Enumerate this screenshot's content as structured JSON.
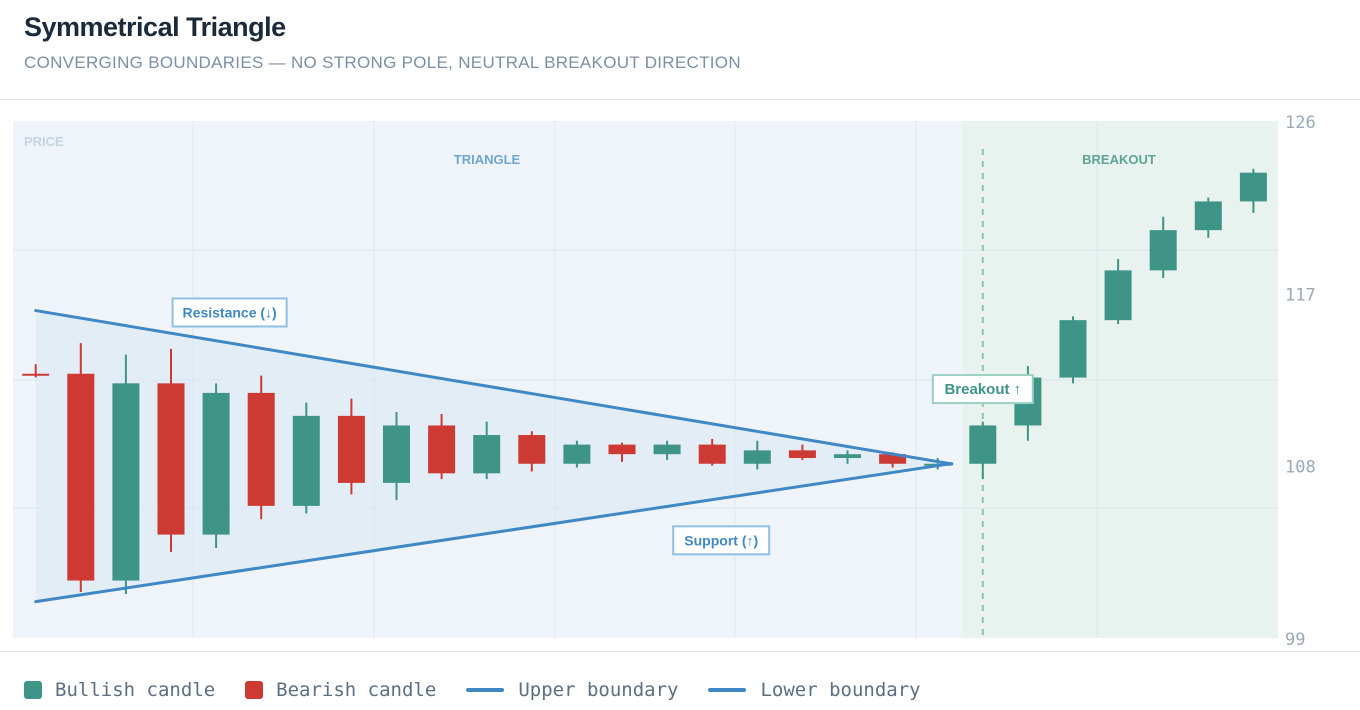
{
  "header": {
    "title": "Symmetrical Triangle",
    "subtitle": "CONVERGING BOUNDARIES — NO STRONG POLE, NEUTRAL BREAKOUT DIRECTION"
  },
  "legend": {
    "items": [
      {
        "label": "Bullish candle",
        "kind": "box",
        "color": "#3f9488"
      },
      {
        "label": "Bearish candle",
        "kind": "box",
        "color": "#cd3a34"
      },
      {
        "label": "Upper boundary",
        "kind": "line",
        "color": "#3f88c5"
      },
      {
        "label": "Lower boundary",
        "kind": "line",
        "color": "#3f88c5"
      }
    ]
  },
  "chart_data": {
    "type": "candlestick",
    "ylim": [
      99,
      126
    ],
    "y_ticks": [
      126,
      117,
      108,
      99
    ],
    "y_axis_side": "right",
    "panel_label": "PRICE",
    "colors": {
      "bullish": "#3f9488",
      "bearish": "#cd3a34",
      "boundary": "#3f88c5",
      "breakout_band": "#e8f2ee",
      "pattern_band": "#eef4f9"
    },
    "zones": [
      {
        "label": "TRIANGLE",
        "from_index": 0,
        "to_index": 20
      },
      {
        "label": "BREAKOUT",
        "from_index": 21,
        "to_index": 27
      }
    ],
    "candles": [
      {
        "o": 112.8,
        "h": 113.3,
        "l": 112.6,
        "c": 112.7
      },
      {
        "o": 112.8,
        "h": 114.4,
        "l": 101.4,
        "c": 102.0
      },
      {
        "o": 102.0,
        "h": 113.8,
        "l": 101.3,
        "c": 112.3
      },
      {
        "o": 112.3,
        "h": 114.1,
        "l": 103.5,
        "c": 104.4
      },
      {
        "o": 104.4,
        "h": 112.3,
        "l": 103.7,
        "c": 111.8
      },
      {
        "o": 111.8,
        "h": 112.7,
        "l": 105.2,
        "c": 105.9
      },
      {
        "o": 105.9,
        "h": 111.3,
        "l": 105.5,
        "c": 110.6
      },
      {
        "o": 110.6,
        "h": 111.5,
        "l": 106.5,
        "c": 107.1
      },
      {
        "o": 107.1,
        "h": 110.8,
        "l": 106.2,
        "c": 110.1
      },
      {
        "o": 110.1,
        "h": 110.7,
        "l": 107.3,
        "c": 107.6
      },
      {
        "o": 107.6,
        "h": 110.3,
        "l": 107.3,
        "c": 109.6
      },
      {
        "o": 109.6,
        "h": 109.8,
        "l": 107.7,
        "c": 108.1
      },
      {
        "o": 108.1,
        "h": 109.3,
        "l": 107.9,
        "c": 109.1
      },
      {
        "o": 109.1,
        "h": 109.2,
        "l": 108.2,
        "c": 108.6
      },
      {
        "o": 108.6,
        "h": 109.3,
        "l": 108.3,
        "c": 109.1
      },
      {
        "o": 109.1,
        "h": 109.4,
        "l": 108.0,
        "c": 108.1
      },
      {
        "o": 108.1,
        "h": 109.3,
        "l": 107.8,
        "c": 108.8
      },
      {
        "o": 108.8,
        "h": 109.1,
        "l": 108.3,
        "c": 108.4
      },
      {
        "o": 108.4,
        "h": 108.8,
        "l": 108.1,
        "c": 108.6
      },
      {
        "o": 108.6,
        "h": 108.7,
        "l": 107.9,
        "c": 108.1
      },
      {
        "o": 108.1,
        "h": 108.4,
        "l": 107.8,
        "c": 108.1
      },
      {
        "o": 108.1,
        "h": 110.3,
        "l": 107.3,
        "c": 110.1
      },
      {
        "o": 110.1,
        "h": 113.2,
        "l": 109.3,
        "c": 112.6
      },
      {
        "o": 112.6,
        "h": 115.8,
        "l": 112.3,
        "c": 115.6
      },
      {
        "o": 115.6,
        "h": 118.8,
        "l": 115.4,
        "c": 118.2
      },
      {
        "o": 118.2,
        "h": 121.0,
        "l": 117.8,
        "c": 120.3
      },
      {
        "o": 120.3,
        "h": 122.0,
        "l": 119.9,
        "c": 121.8
      },
      {
        "o": 121.8,
        "h": 123.5,
        "l": 121.2,
        "c": 123.3
      }
    ],
    "boundaries": {
      "upper": {
        "start": [
          0,
          116.1
        ],
        "end": [
          20,
          108.1
        ]
      },
      "lower": {
        "start": [
          0,
          100.9
        ],
        "end": [
          20,
          108.1
        ]
      }
    },
    "breakout_index": 21,
    "annotations": [
      {
        "text": "Resistance (↓)",
        "index": 4.3,
        "y": 116.0
      },
      {
        "text": "Support (↑)",
        "index": 15.2,
        "y": 104.1
      },
      {
        "text": "Breakout ↑",
        "index": 21.0,
        "y": 112.0
      }
    ]
  }
}
